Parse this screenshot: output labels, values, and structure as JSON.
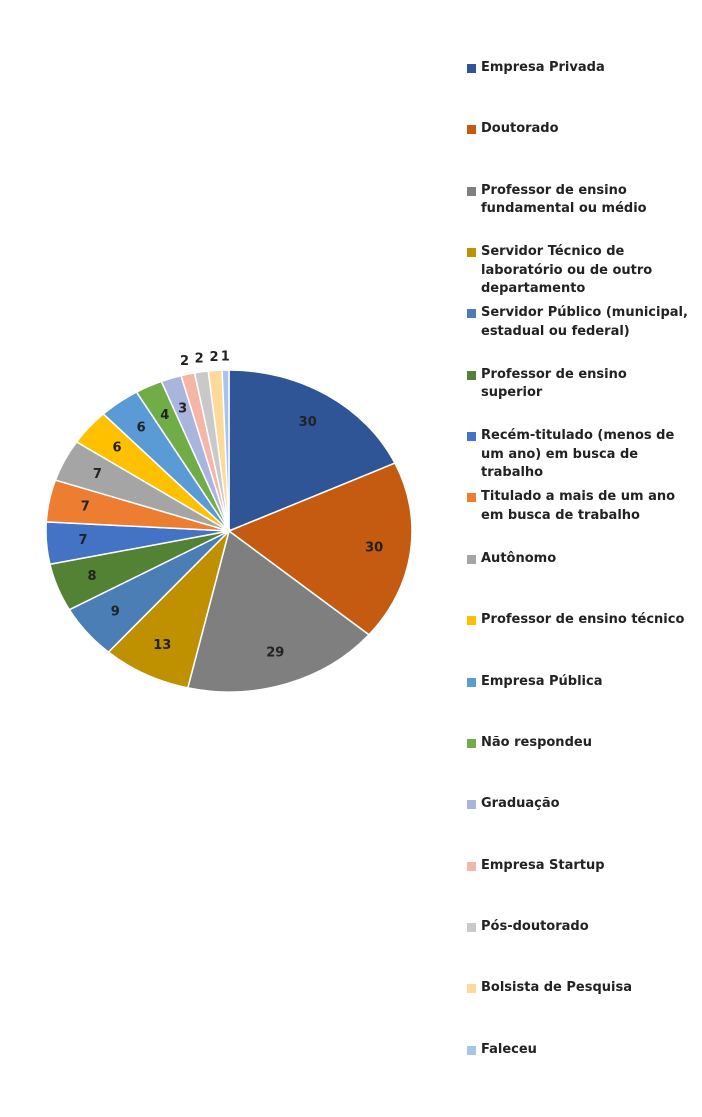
{
  "chart_data": {
    "type": "pie",
    "categories": [
      "Empresa Privada",
      "Doutorado",
      "Professor de ensino fundamental ou médio",
      "Servidor Técnico de laboratório ou de outro departamento",
      "Servidor Público (municipal, estadual ou federal)",
      "Professor de ensino superior",
      "Recém-titulado (menos de um ano) em busca de trabalho",
      "Titulado a mais de um ano em busca de trabalho",
      "Autônomo",
      "Professor de ensino técnico",
      "Empresa Pública",
      "Não respondeu",
      "Graduação",
      "Empresa Startup",
      "Pós-doutorado",
      "Bolsista de Pesquisa",
      "Faleceu"
    ],
    "values": [
      30,
      30,
      29,
      13,
      9,
      8,
      7,
      7,
      7,
      6,
      6,
      4,
      3,
      2,
      2,
      2,
      1
    ],
    "colors": [
      "#2f5597",
      "#c55a11",
      "#7f7f7f",
      "#bf9000",
      "#4a7eb5",
      "#548235",
      "#4472c4",
      "#ed7d31",
      "#a5a5a5",
      "#ffc000",
      "#5b9bd5",
      "#70ad47",
      "#a9b5dd",
      "#f4b6a6",
      "#c9c9c9",
      "#ffd999",
      "#a9c4e8"
    ],
    "legend": "right"
  }
}
